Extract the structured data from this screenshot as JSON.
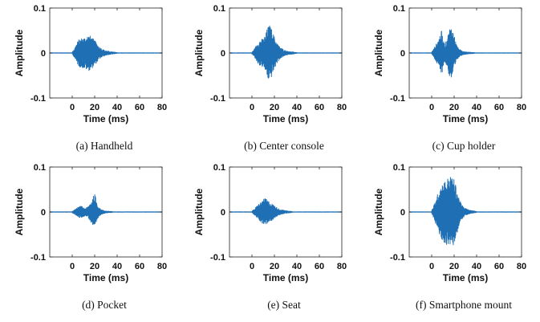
{
  "figure": {
    "waveform_color": "#1f6fb4"
  },
  "chart_data": [
    {
      "type": "line",
      "caption": "(a) Handheld",
      "xlabel": "Time (ms)",
      "ylabel": "Amplitude",
      "xlim": [
        -20,
        80
      ],
      "ylim": [
        -0.1,
        0.1
      ],
      "xticks": [
        0,
        20,
        40,
        60,
        80
      ],
      "yticks": [
        0.1,
        0,
        -0.1
      ],
      "xtick_labels": [
        "0",
        "20",
        "40",
        "60",
        "80"
      ],
      "ytick_labels": [
        "0.1",
        "0",
        "-0.1"
      ],
      "grid": false,
      "envelope": {
        "t_ms": [
          0,
          2,
          4,
          6,
          8,
          10,
          12,
          14,
          16,
          18,
          20,
          22,
          24,
          26,
          28,
          30,
          34,
          40
        ],
        "peak_amplitude": [
          0.002,
          0.01,
          0.022,
          0.03,
          0.033,
          0.034,
          0.036,
          0.04,
          0.038,
          0.033,
          0.028,
          0.021,
          0.014,
          0.01,
          0.007,
          0.005,
          0.003,
          0.001
        ]
      }
    },
    {
      "type": "line",
      "caption": "(b) Center console",
      "xlabel": "Time (ms)",
      "ylabel": "Amplitude",
      "xlim": [
        -20,
        80
      ],
      "ylim": [
        -0.1,
        0.1
      ],
      "xticks": [
        0,
        20,
        40,
        60,
        80
      ],
      "yticks": [
        0.1,
        0,
        -0.1
      ],
      "xtick_labels": [
        "0",
        "20",
        "40",
        "60",
        "80"
      ],
      "ytick_labels": [
        "0.1",
        "0",
        "-0.1"
      ],
      "grid": false,
      "envelope": {
        "t_ms": [
          0,
          2,
          4,
          6,
          8,
          10,
          12,
          14,
          16,
          18,
          20,
          22,
          24,
          26,
          28,
          30,
          34,
          40
        ],
        "peak_amplitude": [
          0.002,
          0.008,
          0.018,
          0.026,
          0.03,
          0.032,
          0.04,
          0.058,
          0.062,
          0.05,
          0.036,
          0.024,
          0.016,
          0.011,
          0.008,
          0.005,
          0.003,
          0.001
        ]
      }
    },
    {
      "type": "line",
      "caption": "(c) Cup holder",
      "xlabel": "Time (ms)",
      "ylabel": "Amplitude",
      "xlim": [
        -20,
        80
      ],
      "ylim": [
        -0.1,
        0.1
      ],
      "xticks": [
        0,
        20,
        40,
        60,
        80
      ],
      "yticks": [
        0.1,
        0,
        -0.1
      ],
      "xtick_labels": [
        "0",
        "20",
        "40",
        "60",
        "80"
      ],
      "ytick_labels": [
        "0.1",
        "0",
        "-0.1"
      ],
      "grid": false,
      "envelope": {
        "t_ms": [
          0,
          2,
          4,
          6,
          8,
          9,
          10,
          12,
          14,
          16,
          18,
          20,
          22,
          24,
          26,
          28,
          32,
          38
        ],
        "peak_amplitude": [
          0.002,
          0.01,
          0.02,
          0.03,
          0.045,
          0.05,
          0.03,
          0.02,
          0.035,
          0.055,
          0.058,
          0.04,
          0.02,
          0.01,
          0.006,
          0.004,
          0.002,
          0.001
        ]
      }
    },
    {
      "type": "line",
      "caption": "(d) Pocket",
      "xlabel": "Time (ms)",
      "ylabel": "Amplitude",
      "xlim": [
        -20,
        80
      ],
      "ylim": [
        -0.1,
        0.1
      ],
      "xticks": [
        0,
        20,
        40,
        60,
        80
      ],
      "yticks": [
        0.1,
        0,
        -0.1
      ],
      "xtick_labels": [
        "0",
        "20",
        "40",
        "60",
        "80"
      ],
      "ytick_labels": [
        "0.1",
        "0",
        "-0.1"
      ],
      "grid": false,
      "envelope": {
        "t_ms": [
          0,
          2,
          4,
          6,
          8,
          10,
          12,
          14,
          16,
          18,
          19,
          20,
          21,
          22,
          24,
          26,
          30,
          36
        ],
        "peak_amplitude": [
          0.002,
          0.005,
          0.008,
          0.012,
          0.013,
          0.01,
          0.008,
          0.012,
          0.02,
          0.03,
          0.036,
          0.04,
          0.032,
          0.02,
          0.01,
          0.005,
          0.002,
          0.001
        ]
      }
    },
    {
      "type": "line",
      "caption": "(e) Seat",
      "xlabel": "Time (ms)",
      "ylabel": "Amplitude",
      "xlim": [
        -20,
        80
      ],
      "ylim": [
        -0.1,
        0.1
      ],
      "xticks": [
        0,
        20,
        40,
        60,
        80
      ],
      "yticks": [
        0.1,
        0,
        -0.1
      ],
      "xtick_labels": [
        "0",
        "20",
        "40",
        "60",
        "80"
      ],
      "ytick_labels": [
        "0.1",
        "0",
        "-0.1"
      ],
      "grid": false,
      "envelope": {
        "t_ms": [
          0,
          2,
          4,
          6,
          8,
          10,
          12,
          14,
          16,
          18,
          20,
          22,
          24,
          26,
          30,
          36
        ],
        "peak_amplitude": [
          0.002,
          0.006,
          0.012,
          0.018,
          0.022,
          0.028,
          0.03,
          0.026,
          0.022,
          0.018,
          0.014,
          0.01,
          0.007,
          0.005,
          0.003,
          0.001
        ]
      }
    },
    {
      "type": "line",
      "caption": "(f) Smartphone mount",
      "xlabel": "Time (ms)",
      "ylabel": "Amplitude",
      "xlim": [
        -20,
        80
      ],
      "ylim": [
        -0.1,
        0.1
      ],
      "xticks": [
        0,
        20,
        40,
        60,
        80
      ],
      "yticks": [
        0.1,
        0,
        -0.1
      ],
      "xtick_labels": [
        "0",
        "20",
        "40",
        "60",
        "80"
      ],
      "ytick_labels": [
        "0.1",
        "0",
        "-0.1"
      ],
      "grid": false,
      "envelope": {
        "t_ms": [
          0,
          2,
          4,
          6,
          8,
          10,
          12,
          14,
          16,
          18,
          20,
          22,
          24,
          26,
          28,
          30,
          34,
          40
        ],
        "peak_amplitude": [
          0.003,
          0.015,
          0.03,
          0.045,
          0.06,
          0.065,
          0.07,
          0.075,
          0.078,
          0.08,
          0.072,
          0.055,
          0.035,
          0.02,
          0.012,
          0.008,
          0.004,
          0.001
        ]
      }
    }
  ]
}
